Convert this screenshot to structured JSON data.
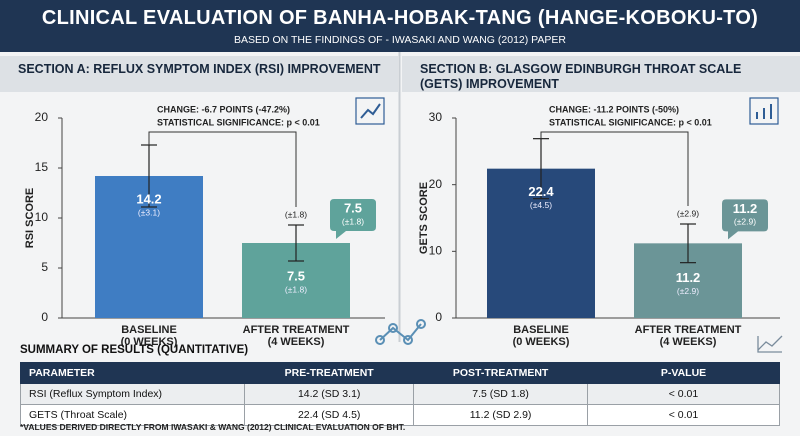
{
  "header": {
    "title": "CLINICAL EVALUATION OF BANHA-HOBAK-TANG (HANGE-KOBOKU-TO)",
    "subtitle": "BASED ON THE FINDINGS OF - IWASAKI AND WANG (2012) PAPER"
  },
  "chart_data": [
    {
      "type": "bar",
      "title": "SECTION A: REFLUX SYMPTOM INDEX (RSI) IMPROVEMENT",
      "y_label": "RSI SCORE",
      "categories": [
        [
          "BASELINE",
          "(0 WEEKS)"
        ],
        [
          "AFTER TREATMENT",
          "(4 WEEKS)"
        ]
      ],
      "values": [
        14.2,
        7.5
      ],
      "errors": [
        3.1,
        1.8
      ],
      "error_labels": [
        "(±3.1)",
        "(±1.8)"
      ],
      "colors": [
        "#3f7dc3",
        "#5fa39b"
      ],
      "annotations": [
        "CHANGE: -6.7 POINTS (-47.2%)",
        "STATISTICAL SIGNIFICANCE: p < 0.01"
      ],
      "ylim": [
        0,
        20
      ],
      "yticks": [
        0,
        5,
        10,
        15,
        20
      ]
    },
    {
      "type": "bar",
      "title": "SECTION B: GLASGOW EDINBURGH THROAT SCALE (GETS) IMPROVEMENT",
      "y_label": "GETS SCORE",
      "categories": [
        [
          "BASELINE",
          "(0 WEEKS)"
        ],
        [
          "AFTER TREATMENT",
          "(4 WEEKS)"
        ]
      ],
      "values": [
        22.4,
        11.2
      ],
      "errors": [
        4.5,
        2.9
      ],
      "error_labels": [
        "(±4.5)",
        "(±2.9)"
      ],
      "colors": [
        "#27497a",
        "#6b9597"
      ],
      "annotations": [
        "CHANGE: -11.2 POINTS (-50%)",
        "STATISTICAL SIGNIFICANCE: p < 0.01"
      ],
      "ylim": [
        0,
        30
      ],
      "yticks": [
        0,
        10,
        20,
        30
      ]
    }
  ],
  "table": {
    "title": "SUMMARY OF RESULTS (QUANTITATIVE)",
    "columns": [
      "PARAMETER",
      "PRE-TREATMENT",
      "POST-TREATMENT",
      "P-VALUE"
    ],
    "rows": [
      [
        "RSI (Reflux Symptom Index)",
        "14.2 (SD 3.1)",
        "7.5 (SD 1.8)",
        "< 0.01"
      ],
      [
        "GETS (Throat Scale)",
        "22.4 (SD 4.5)",
        "11.2 (SD 2.9)",
        "< 0.01"
      ]
    ]
  },
  "footnote": "*VALUES DERIVED DIRECTLY FROM IWASAKI & WANG (2012) CLINICAL EVALUATION OF BHT."
}
